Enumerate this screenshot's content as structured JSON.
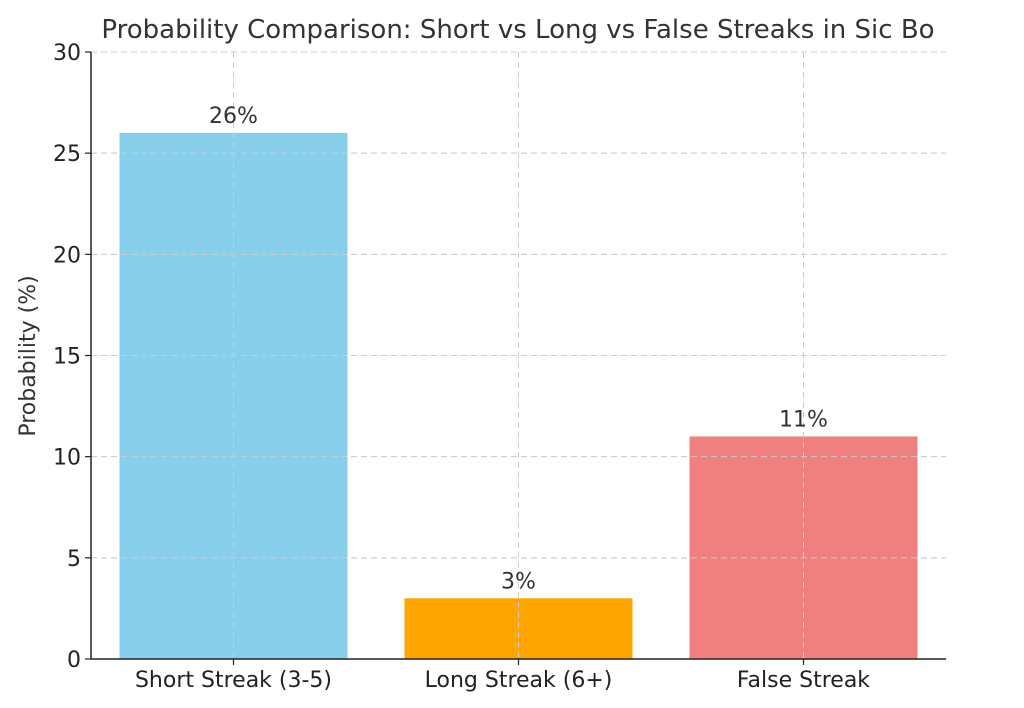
{
  "chart_data": {
    "type": "bar",
    "title": "Probability Comparison: Short vs Long vs False Streaks in Sic Bo",
    "xlabel": "",
    "ylabel": "Probability (%)",
    "categories": [
      "Short Streak (3-5)",
      "Long Streak (6+)",
      "False Streak"
    ],
    "values": [
      26,
      3,
      11
    ],
    "data_labels": [
      "26%",
      "3%",
      "11%"
    ],
    "colors": [
      "#87CEEB",
      "#FFA500",
      "#F08080"
    ],
    "ylim": [
      0,
      30
    ],
    "yticks": [
      0,
      5,
      10,
      15,
      20,
      25,
      30
    ],
    "grid": true,
    "legend": "none"
  }
}
